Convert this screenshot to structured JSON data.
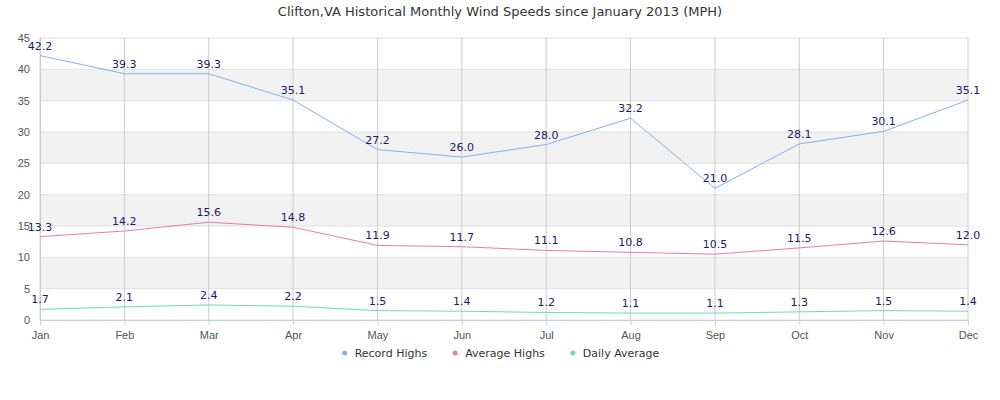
{
  "chart_data": {
    "type": "line",
    "title": "Clifton,VA Historical Monthly Wind Speeds since January 2013 (MPH)",
    "categories": [
      "Jan",
      "Feb",
      "Mar",
      "Apr",
      "May",
      "Jun",
      "Jul",
      "Aug",
      "Sep",
      "Oct",
      "Nov",
      "Dec"
    ],
    "series": [
      {
        "name": "Record Highs",
        "color": "#7cb5ec",
        "values": [
          42.2,
          39.3,
          39.3,
          35.1,
          27.2,
          26.0,
          28.0,
          32.2,
          21.0,
          28.1,
          30.1,
          35.1
        ],
        "value_labels": [
          "42.2",
          "39.3",
          "39.3",
          "35.1",
          "27.2",
          "26.0",
          "28.0",
          "32.2",
          "21.0",
          "28.1",
          "30.1",
          "35.1"
        ]
      },
      {
        "name": "Average Highs",
        "color": "#e87ea5",
        "values": [
          13.3,
          14.2,
          15.6,
          14.8,
          11.9,
          11.7,
          11.1,
          10.8,
          10.5,
          11.5,
          12.6,
          12.0
        ],
        "value_labels": [
          "13.3",
          "14.2",
          "15.6",
          "14.8",
          "11.9",
          "11.7",
          "11.1",
          "10.8",
          "10.5",
          "11.5",
          "12.6",
          "12.0"
        ]
      },
      {
        "name": "Daily Average",
        "color": "#6fdcae",
        "values": [
          1.7,
          2.1,
          2.4,
          2.2,
          1.5,
          1.4,
          1.2,
          1.1,
          1.1,
          1.3,
          1.5,
          1.4
        ]
      }
    ],
    "ylim": [
      0,
      45
    ],
    "yticks": [
      0,
      5,
      10,
      15,
      20,
      25,
      30,
      35,
      40,
      45
    ],
    "grid": true,
    "legend": "bottom",
    "data_labels": true
  }
}
